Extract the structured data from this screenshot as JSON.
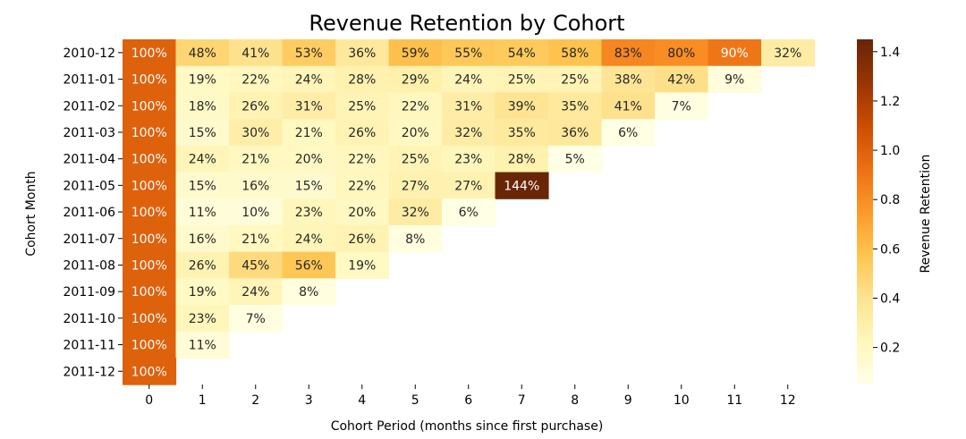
{
  "chart_data": {
    "type": "heatmap",
    "title": "Revenue Retention by Cohort",
    "xlabel": "Cohort Period (months since first purchase)",
    "ylabel": "Cohort Month",
    "colorbar_label": "Revenue Retention",
    "colormap": "YlOrBr",
    "color_range": [
      0.05,
      1.45
    ],
    "colorbar_ticks": [
      "0.2",
      "0.4",
      "0.6",
      "0.8",
      "1.0",
      "1.2",
      "1.4"
    ],
    "x_categories": [
      "0",
      "1",
      "2",
      "3",
      "4",
      "5",
      "6",
      "7",
      "8",
      "9",
      "10",
      "11",
      "12"
    ],
    "y_categories": [
      "2010-12",
      "2011-01",
      "2011-02",
      "2011-03",
      "2011-04",
      "2011-05",
      "2011-06",
      "2011-07",
      "2011-08",
      "2011-09",
      "2011-10",
      "2011-11",
      "2011-12"
    ],
    "values": [
      [
        1.0,
        0.48,
        0.41,
        0.53,
        0.36,
        0.59,
        0.55,
        0.54,
        0.58,
        0.83,
        0.8,
        0.9,
        0.32
      ],
      [
        1.0,
        0.19,
        0.22,
        0.24,
        0.28,
        0.29,
        0.24,
        0.25,
        0.25,
        0.38,
        0.42,
        0.09,
        null
      ],
      [
        1.0,
        0.18,
        0.26,
        0.31,
        0.25,
        0.22,
        0.31,
        0.39,
        0.35,
        0.41,
        0.07,
        null,
        null
      ],
      [
        1.0,
        0.15,
        0.3,
        0.21,
        0.26,
        0.2,
        0.32,
        0.35,
        0.36,
        0.06,
        null,
        null,
        null
      ],
      [
        1.0,
        0.24,
        0.21,
        0.2,
        0.22,
        0.25,
        0.23,
        0.28,
        0.05,
        null,
        null,
        null,
        null
      ],
      [
        1.0,
        0.15,
        0.16,
        0.15,
        0.22,
        0.27,
        0.27,
        1.44,
        null,
        null,
        null,
        null,
        null
      ],
      [
        1.0,
        0.11,
        0.1,
        0.23,
        0.2,
        0.32,
        0.06,
        null,
        null,
        null,
        null,
        null,
        null
      ],
      [
        1.0,
        0.16,
        0.21,
        0.24,
        0.26,
        0.08,
        null,
        null,
        null,
        null,
        null,
        null,
        null
      ],
      [
        1.0,
        0.26,
        0.45,
        0.56,
        0.19,
        null,
        null,
        null,
        null,
        null,
        null,
        null,
        null
      ],
      [
        1.0,
        0.19,
        0.24,
        0.08,
        null,
        null,
        null,
        null,
        null,
        null,
        null,
        null,
        null
      ],
      [
        1.0,
        0.23,
        0.07,
        null,
        null,
        null,
        null,
        null,
        null,
        null,
        null,
        null,
        null
      ],
      [
        1.0,
        0.11,
        null,
        null,
        null,
        null,
        null,
        null,
        null,
        null,
        null,
        null,
        null
      ],
      [
        1.0,
        null,
        null,
        null,
        null,
        null,
        null,
        null,
        null,
        null,
        null,
        null,
        null
      ]
    ],
    "annotations": [
      [
        "100%",
        "48%",
        "41%",
        "53%",
        "36%",
        "59%",
        "55%",
        "54%",
        "58%",
        "83%",
        "80%",
        "90%",
        "32%"
      ],
      [
        "100%",
        "19%",
        "22%",
        "24%",
        "28%",
        "29%",
        "24%",
        "25%",
        "25%",
        "38%",
        "42%",
        "9%",
        ""
      ],
      [
        "100%",
        "18%",
        "26%",
        "31%",
        "25%",
        "22%",
        "31%",
        "39%",
        "35%",
        "41%",
        "7%",
        "",
        ""
      ],
      [
        "100%",
        "15%",
        "30%",
        "21%",
        "26%",
        "20%",
        "32%",
        "35%",
        "36%",
        "6%",
        "",
        "",
        ""
      ],
      [
        "100%",
        "24%",
        "21%",
        "20%",
        "22%",
        "25%",
        "23%",
        "28%",
        "5%",
        "",
        "",
        "",
        ""
      ],
      [
        "100%",
        "15%",
        "16%",
        "15%",
        "22%",
        "27%",
        "27%",
        "144%",
        "",
        "",
        "",
        "",
        ""
      ],
      [
        "100%",
        "11%",
        "10%",
        "23%",
        "20%",
        "32%",
        "6%",
        "",
        "",
        "",
        "",
        "",
        ""
      ],
      [
        "100%",
        "16%",
        "21%",
        "24%",
        "26%",
        "8%",
        "",
        "",
        "",
        "",
        "",
        "",
        ""
      ],
      [
        "100%",
        "26%",
        "45%",
        "56%",
        "19%",
        "",
        "",
        "",
        "",
        "",
        "",
        "",
        ""
      ],
      [
        "100%",
        "19%",
        "24%",
        "8%",
        "",
        "",
        "",
        "",
        "",
        "",
        "",
        "",
        ""
      ],
      [
        "100%",
        "23%",
        "7%",
        "",
        "",
        "",
        "",
        "",
        "",
        "",
        "",
        "",
        ""
      ],
      [
        "100%",
        "11%",
        "",
        "",
        "",
        "",
        "",
        "",
        "",
        "",
        "",
        "",
        ""
      ],
      [
        "100%",
        "",
        "",
        "",
        "",
        "",
        "",
        "",
        "",
        "",
        "",
        "",
        ""
      ]
    ]
  }
}
